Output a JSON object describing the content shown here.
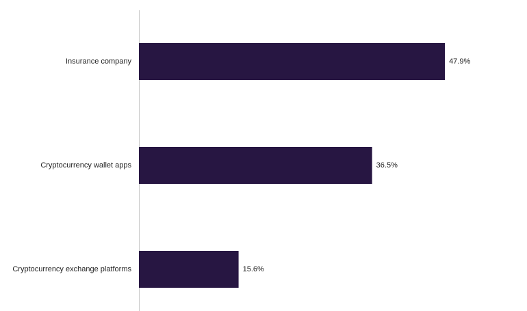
{
  "chart_data": {
    "type": "hbar",
    "categories": [
      "Insurance company",
      "Cryptocurrency wallet apps",
      "Cryptocurrency exchange platforms"
    ],
    "values": [
      47.9,
      36.5,
      15.6
    ],
    "value_labels": [
      "47.9%",
      "36.5%",
      "15.6%"
    ],
    "color": "#271642",
    "xlim": [
      0,
      60
    ]
  }
}
